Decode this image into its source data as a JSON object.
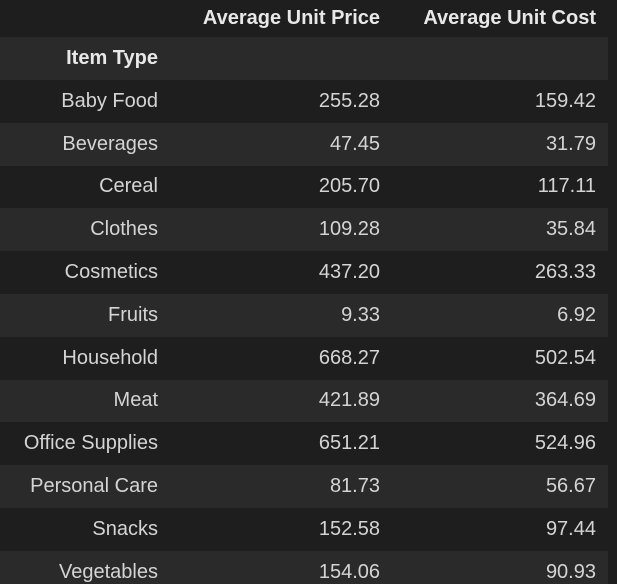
{
  "table": {
    "columns": [
      "Average Unit Price",
      "Average Unit Cost"
    ],
    "index_name": "Item Type",
    "rows": [
      {
        "label": "Baby Food",
        "price": "255.28",
        "cost": "159.42"
      },
      {
        "label": "Beverages",
        "price": "47.45",
        "cost": "31.79"
      },
      {
        "label": "Cereal",
        "price": "205.70",
        "cost": "117.11"
      },
      {
        "label": "Clothes",
        "price": "109.28",
        "cost": "35.84"
      },
      {
        "label": "Cosmetics",
        "price": "437.20",
        "cost": "263.33"
      },
      {
        "label": "Fruits",
        "price": "9.33",
        "cost": "6.92"
      },
      {
        "label": "Household",
        "price": "668.27",
        "cost": "502.54"
      },
      {
        "label": "Meat",
        "price": "421.89",
        "cost": "364.69"
      },
      {
        "label": "Office Supplies",
        "price": "651.21",
        "cost": "524.96"
      },
      {
        "label": "Personal Care",
        "price": "81.73",
        "cost": "56.67"
      },
      {
        "label": "Snacks",
        "price": "152.58",
        "cost": "97.44"
      },
      {
        "label": "Vegetables",
        "price": "154.06",
        "cost": "90.93"
      }
    ]
  }
}
